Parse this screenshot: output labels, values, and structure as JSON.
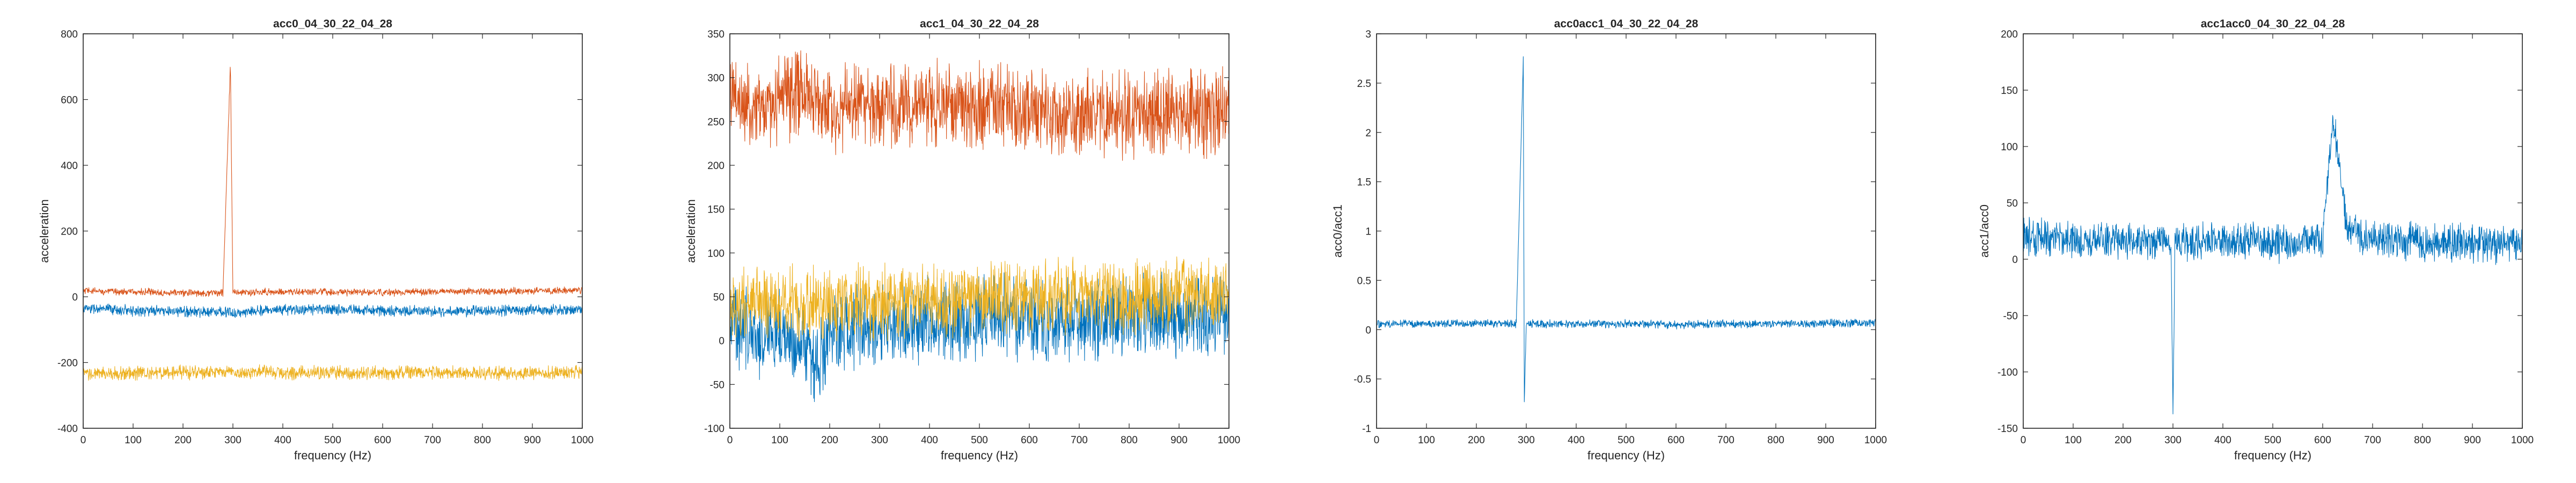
{
  "colors": {
    "series_blue": "#0072bd",
    "series_orange": "#d95319",
    "series_yellow": "#edb120",
    "axes": "#262626",
    "background": "#ffffff"
  },
  "chart_data": [
    {
      "type": "line",
      "title": "acc0_04_30_22_04_28",
      "xlabel": "frequency (Hz)",
      "ylabel": "acceleration",
      "xlim": [
        0,
        1000
      ],
      "ylim": [
        -400,
        800
      ],
      "xticks": [
        0,
        100,
        200,
        300,
        400,
        500,
        600,
        700,
        800,
        900,
        1000
      ],
      "yticks": [
        -400,
        -200,
        0,
        200,
        400,
        600,
        800
      ],
      "grid": false,
      "legend": "none",
      "series": [
        {
          "color": "#d95319",
          "x": [
            0,
            100,
            200,
            280,
            295,
            300,
            330,
            360,
            400,
            500,
            600,
            700,
            800,
            900,
            1000
          ],
          "y": [
            18,
            15,
            12,
            12,
            710,
            14,
            12,
            15,
            15,
            14,
            13,
            15,
            16,
            18,
            20
          ],
          "noise": 8
        },
        {
          "color": "#0072bd",
          "x": [
            0,
            100,
            200,
            280,
            295,
            300,
            330,
            360,
            400,
            500,
            600,
            700,
            800,
            900,
            1000
          ],
          "y": [
            -35,
            -42,
            -45,
            -45,
            -45,
            -55,
            -45,
            -40,
            -40,
            -38,
            -42,
            -45,
            -43,
            -40,
            -40
          ],
          "noise": 12
        },
        {
          "color": "#edb120",
          "x": [
            0,
            100,
            200,
            280,
            295,
            300,
            330,
            360,
            400,
            500,
            600,
            700,
            800,
            900,
            1000
          ],
          "y": [
            -235,
            -232,
            -230,
            -230,
            -225,
            -235,
            -230,
            -228,
            -232,
            -230,
            -232,
            -230,
            -232,
            -232,
            -230
          ],
          "noise": 15
        }
      ]
    },
    {
      "type": "line",
      "title": "acc1_04_30_22_04_28",
      "xlabel": "frequency (Hz)",
      "ylabel": "acceleration",
      "xlim": [
        0,
        1000
      ],
      "ylim": [
        -100,
        350
      ],
      "xticks": [
        0,
        100,
        200,
        300,
        400,
        500,
        600,
        700,
        800,
        900,
        1000
      ],
      "yticks": [
        -100,
        -50,
        0,
        50,
        100,
        150,
        200,
        250,
        300,
        350
      ],
      "grid": false,
      "legend": "none",
      "series": [
        {
          "color": "#d95319",
          "x": [
            0,
            30,
            60,
            100,
            150,
            200,
            250,
            300,
            400,
            500,
            600,
            700,
            800,
            900,
            1000
          ],
          "y": [
            280,
            270,
            265,
            275,
            290,
            265,
            270,
            270,
            270,
            270,
            265,
            260,
            258,
            260,
            260
          ],
          "noise": 35
        },
        {
          "color": "#0072bd",
          "x": [
            0,
            30,
            60,
            100,
            150,
            170,
            200,
            250,
            300,
            400,
            500,
            600,
            700,
            800,
            900,
            1000
          ],
          "y": [
            25,
            15,
            5,
            10,
            0,
            -35,
            5,
            15,
            20,
            25,
            25,
            25,
            25,
            28,
            28,
            30
          ],
          "noise": 35
        },
        {
          "color": "#edb120",
          "x": [
            0,
            30,
            60,
            100,
            150,
            200,
            250,
            300,
            400,
            500,
            600,
            700,
            800,
            900,
            1000
          ],
          "y": [
            35,
            40,
            45,
            45,
            40,
            45,
            45,
            45,
            45,
            50,
            50,
            50,
            50,
            52,
            55
          ],
          "noise": 30
        }
      ]
    },
    {
      "type": "line",
      "title": "acc0acc1_04_30_22_04_28",
      "xlabel": "frequency (Hz)",
      "ylabel": "acc0/acc1",
      "xlim": [
        0,
        1000
      ],
      "ylim": [
        -1,
        3
      ],
      "xticks": [
        0,
        100,
        200,
        300,
        400,
        500,
        600,
        700,
        800,
        900,
        1000
      ],
      "yticks": [
        -1,
        -0.5,
        0,
        0.5,
        1,
        1.5,
        2,
        2.5,
        3
      ],
      "grid": false,
      "legend": "none",
      "series": [
        {
          "color": "#0072bd",
          "x": [
            0,
            100,
            200,
            280,
            294,
            296,
            300,
            330,
            400,
            500,
            600,
            700,
            800,
            900,
            1000
          ],
          "y": [
            0.06,
            0.06,
            0.06,
            0.06,
            2.75,
            -0.75,
            0.06,
            0.06,
            0.06,
            0.06,
            0.05,
            0.06,
            0.06,
            0.06,
            0.07
          ],
          "noise": 0.03
        }
      ]
    },
    {
      "type": "line",
      "title": "acc1acc0_04_30_22_04_28",
      "xlabel": "frequency (Hz)",
      "ylabel": "acc1/acc0",
      "xlim": [
        0,
        1000
      ],
      "ylim": [
        -150,
        200
      ],
      "xticks": [
        0,
        100,
        200,
        300,
        400,
        500,
        600,
        700,
        800,
        900,
        1000
      ],
      "yticks": [
        -150,
        -100,
        -50,
        0,
        50,
        100,
        150,
        200
      ],
      "grid": false,
      "legend": "none",
      "series": [
        {
          "color": "#0072bd",
          "x": [
            0,
            50,
            100,
            200,
            250,
            296,
            300,
            304,
            400,
            500,
            600,
            620,
            650,
            700,
            800,
            900,
            1000
          ],
          "y": [
            20,
            18,
            17,
            18,
            18,
            15,
            -135,
            15,
            17,
            15,
            15,
            128,
            25,
            20,
            15,
            14,
            14
          ],
          "noise": 12
        }
      ]
    }
  ]
}
